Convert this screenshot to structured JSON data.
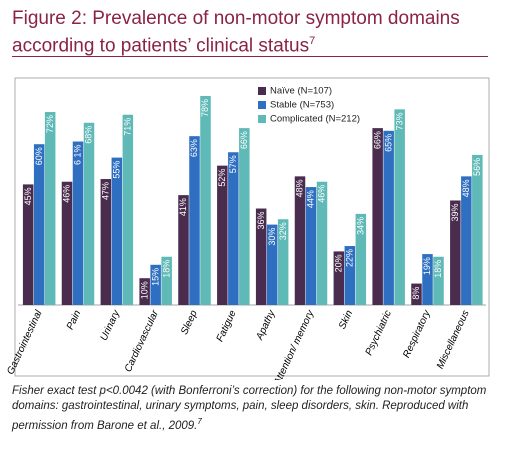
{
  "chart_data": {
    "type": "bar",
    "title": "Figure 2: Prevalence of non-motor symptom domains according to patients’ clinical status",
    "title_ref": "7",
    "categories": [
      "Gastrointestinal",
      "Pain",
      "Urinary",
      "Cardiovascular",
      "Sleep",
      "Fatigue",
      "Apathy",
      "Attention/ memory",
      "Skin",
      "Psychiatric",
      "Respiratory",
      "Miscellaneous"
    ],
    "series": [
      {
        "name": "Naïve (N=107)",
        "color": "#4a2d4e",
        "values": [
          45,
          46,
          47,
          10,
          41,
          52,
          36,
          48,
          20,
          66,
          8,
          39
        ],
        "value_labels": [
          "45%",
          "46%",
          "47%",
          "10%",
          "41%",
          "52%",
          "36%",
          "48%",
          "20%",
          "66%",
          "8%",
          "39%"
        ]
      },
      {
        "name": "Stable (N=753)",
        "color": "#2f6fc1",
        "values": [
          60,
          61,
          55,
          15,
          63,
          57,
          30,
          44,
          22,
          65,
          19,
          48
        ],
        "value_labels": [
          "60%",
          "6 1%",
          "55%",
          "15%",
          "63%",
          "57%",
          "30%",
          "44%",
          "22%",
          "65%",
          "19%",
          "48%"
        ]
      },
      {
        "name": "Complicated (N=212)",
        "color": "#5fb9b6",
        "values": [
          72,
          68,
          71,
          18,
          78,
          66,
          32,
          46,
          34,
          73,
          18,
          56
        ],
        "value_labels": [
          "72%",
          "68%",
          "71%",
          "18%",
          "78%",
          "66%",
          "32%",
          "46%",
          "34%",
          "73%",
          "18%",
          "56%"
        ]
      }
    ],
    "caption": "Fisher exact test p<0.0042 (with Bonferroni’s correction) for the following non-motor symptom domains: gastrointestinal, urinary symptoms, pain, sleep disorders, skin. Reproduced with permission from Barone et al., 2009.",
    "caption_ref": "7"
  }
}
